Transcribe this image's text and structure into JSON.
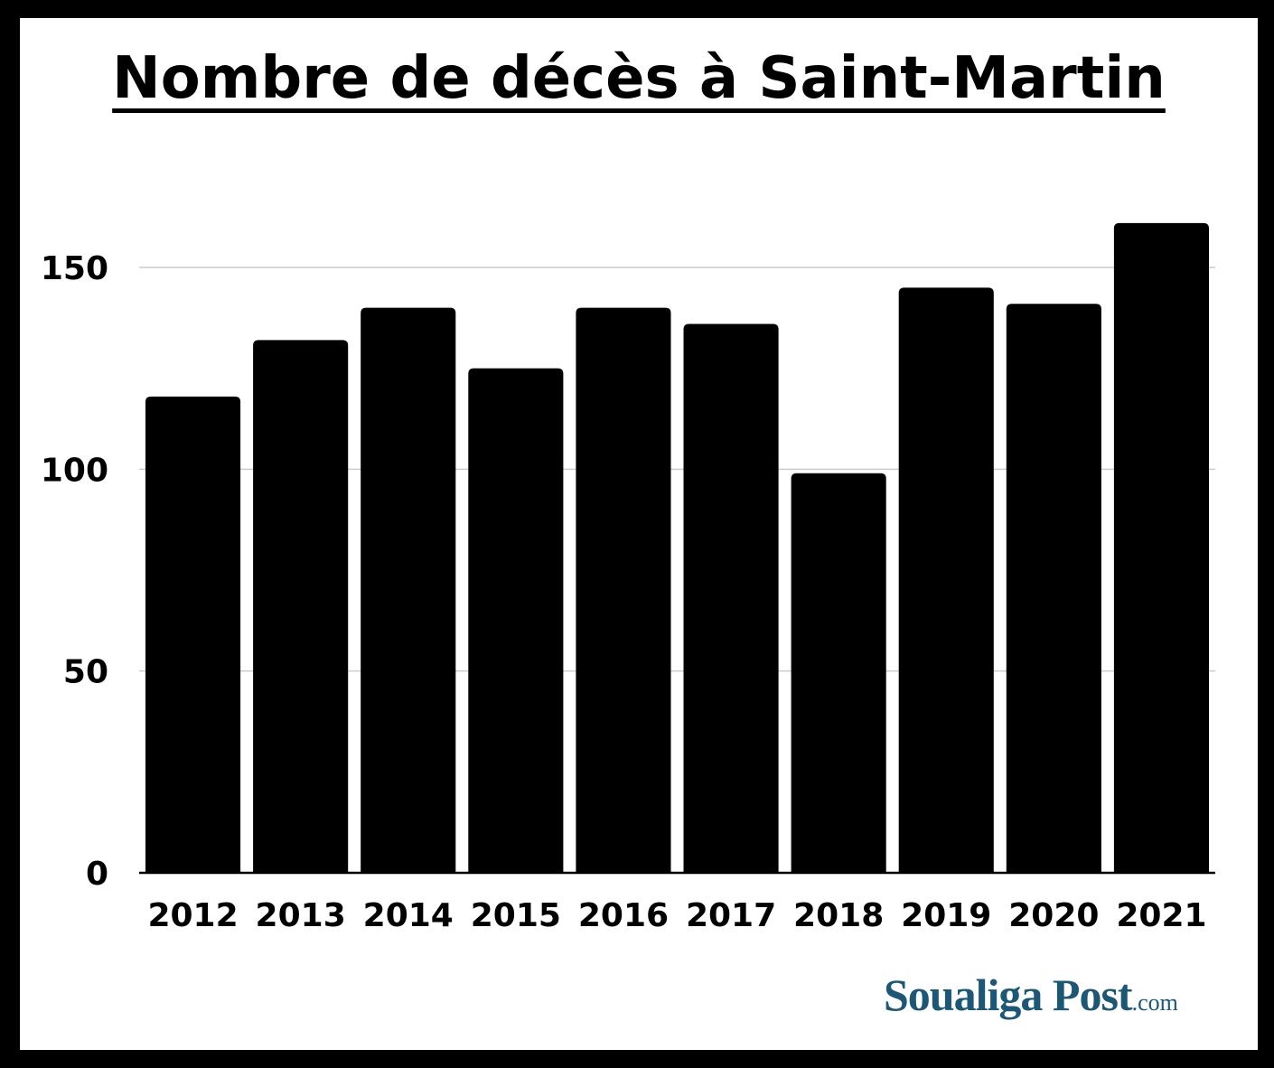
{
  "chart_data": {
    "type": "bar",
    "title": "Nombre de décès à Saint-Martin",
    "categories": [
      "2012",
      "2013",
      "2014",
      "2015",
      "2016",
      "2017",
      "2018",
      "2019",
      "2020",
      "2021"
    ],
    "values": [
      118,
      132,
      140,
      125,
      140,
      136,
      99,
      145,
      141,
      161
    ],
    "ylim": [
      0,
      150
    ],
    "yticks": [
      0,
      50,
      100,
      150
    ],
    "xlabel": "",
    "ylabel": "",
    "grid": true,
    "bar_color": "#000000"
  },
  "logo": {
    "name": "Soualiga Post",
    "tld": ".com",
    "color": "#1c5776"
  }
}
